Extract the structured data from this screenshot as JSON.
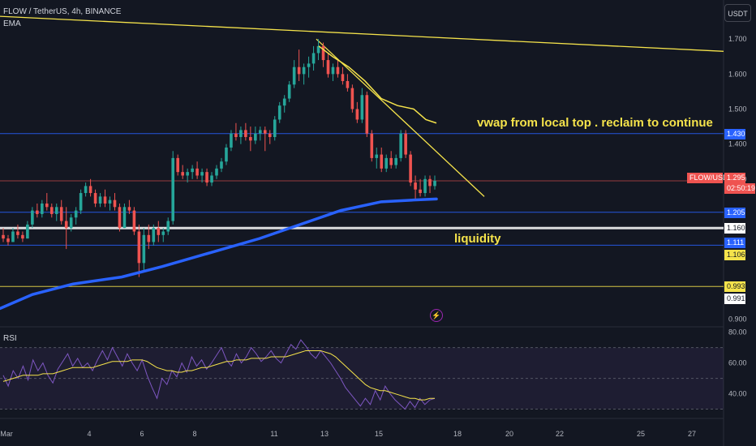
{
  "header": {
    "symbol_line": "FLOW / TetherUS, 4h, BINANCE",
    "indicator": "EMA",
    "rsi_label": "RSI",
    "currency_button": "USDT"
  },
  "annotations": {
    "vwap_text": "vwap from local top . reclaim to continue",
    "liquidity_text": "liquidity"
  },
  "price_tags": {
    "symbol": "FLOW/USDT",
    "last": "1.295",
    "countdown": "02:50:19",
    "l1430": "1.430",
    "l1205": "1.205",
    "l1160": "1.160",
    "l1111": "1.111",
    "l1106": "1.106",
    "l0993": "0.993",
    "l0991": "0.991"
  },
  "colors": {
    "background": "#131722",
    "up": "#26a69a",
    "down": "#ef5350",
    "yellow": "#f5e34b",
    "ema_blue": "#2962ff",
    "rsi": "#7e57c2",
    "rsi_ma": "#f5e34b"
  },
  "chart_data": [
    {
      "type": "candlestick",
      "price_axis_ticks": [
        "1.700",
        "1.600",
        "1.500",
        "1.400",
        "1.300",
        "0.900"
      ],
      "ylim": [
        0.88,
        1.77
      ],
      "x_ticks": [
        "Mar",
        "4",
        "6",
        "8",
        "11",
        "13",
        "15",
        "18",
        "20",
        "22",
        "25",
        "27"
      ],
      "candles": [
        [
          1.14,
          1.16,
          1.12,
          1.13
        ],
        [
          1.13,
          1.14,
          1.11,
          1.12
        ],
        [
          1.12,
          1.16,
          1.12,
          1.15
        ],
        [
          1.15,
          1.17,
          1.13,
          1.14
        ],
        [
          1.14,
          1.15,
          1.12,
          1.13
        ],
        [
          1.13,
          1.18,
          1.13,
          1.17
        ],
        [
          1.17,
          1.22,
          1.16,
          1.21
        ],
        [
          1.21,
          1.23,
          1.19,
          1.2
        ],
        [
          1.2,
          1.24,
          1.19,
          1.23
        ],
        [
          1.23,
          1.26,
          1.21,
          1.22
        ],
        [
          1.22,
          1.23,
          1.19,
          1.2
        ],
        [
          1.2,
          1.23,
          1.18,
          1.22
        ],
        [
          1.22,
          1.24,
          1.17,
          1.18
        ],
        [
          1.18,
          1.22,
          1.1,
          1.16
        ],
        [
          1.16,
          1.2,
          1.15,
          1.19
        ],
        [
          1.19,
          1.22,
          1.17,
          1.21
        ],
        [
          1.21,
          1.27,
          1.2,
          1.26
        ],
        [
          1.26,
          1.29,
          1.25,
          1.28
        ],
        [
          1.28,
          1.3,
          1.25,
          1.26
        ],
        [
          1.26,
          1.27,
          1.22,
          1.23
        ],
        [
          1.23,
          1.26,
          1.22,
          1.25
        ],
        [
          1.25,
          1.27,
          1.22,
          1.23
        ],
        [
          1.23,
          1.25,
          1.21,
          1.24
        ],
        [
          1.24,
          1.26,
          1.21,
          1.22
        ],
        [
          1.22,
          1.23,
          1.15,
          1.16
        ],
        [
          1.16,
          1.23,
          1.16,
          1.22
        ],
        [
          1.22,
          1.24,
          1.2,
          1.21
        ],
        [
          1.21,
          1.22,
          1.14,
          1.15
        ],
        [
          1.15,
          1.17,
          1.02,
          1.06
        ],
        [
          1.06,
          1.16,
          1.04,
          1.14
        ],
        [
          1.14,
          1.17,
          1.1,
          1.12
        ],
        [
          1.12,
          1.17,
          1.11,
          1.16
        ],
        [
          1.16,
          1.18,
          1.12,
          1.14
        ],
        [
          1.14,
          1.16,
          1.12,
          1.15
        ],
        [
          1.15,
          1.19,
          1.14,
          1.18
        ],
        [
          1.18,
          1.38,
          1.17,
          1.36
        ],
        [
          1.36,
          1.37,
          1.31,
          1.32
        ],
        [
          1.32,
          1.34,
          1.3,
          1.31
        ],
        [
          1.31,
          1.33,
          1.29,
          1.32
        ],
        [
          1.32,
          1.34,
          1.3,
          1.33
        ],
        [
          1.33,
          1.35,
          1.3,
          1.31
        ],
        [
          1.31,
          1.33,
          1.29,
          1.32
        ],
        [
          1.32,
          1.33,
          1.28,
          1.29
        ],
        [
          1.29,
          1.32,
          1.28,
          1.31
        ],
        [
          1.31,
          1.34,
          1.3,
          1.33
        ],
        [
          1.33,
          1.36,
          1.32,
          1.35
        ],
        [
          1.35,
          1.4,
          1.34,
          1.39
        ],
        [
          1.39,
          1.44,
          1.38,
          1.43
        ],
        [
          1.43,
          1.46,
          1.41,
          1.42
        ],
        [
          1.42,
          1.45,
          1.4,
          1.44
        ],
        [
          1.44,
          1.46,
          1.41,
          1.42
        ],
        [
          1.42,
          1.45,
          1.38,
          1.41
        ],
        [
          1.41,
          1.45,
          1.4,
          1.43
        ],
        [
          1.43,
          1.45,
          1.41,
          1.44
        ],
        [
          1.44,
          1.45,
          1.38,
          1.43
        ],
        [
          1.43,
          1.44,
          1.4,
          1.42
        ],
        [
          1.42,
          1.48,
          1.41,
          1.47
        ],
        [
          1.47,
          1.52,
          1.46,
          1.51
        ],
        [
          1.51,
          1.54,
          1.49,
          1.53
        ],
        [
          1.53,
          1.58,
          1.52,
          1.57
        ],
        [
          1.57,
          1.64,
          1.56,
          1.62
        ],
        [
          1.62,
          1.67,
          1.58,
          1.6
        ],
        [
          1.6,
          1.63,
          1.57,
          1.62
        ],
        [
          1.62,
          1.65,
          1.59,
          1.63
        ],
        [
          1.63,
          1.68,
          1.61,
          1.66
        ],
        [
          1.66,
          1.7,
          1.64,
          1.68
        ],
        [
          1.68,
          1.69,
          1.62,
          1.64
        ],
        [
          1.64,
          1.66,
          1.59,
          1.6
        ],
        [
          1.6,
          1.63,
          1.58,
          1.62
        ],
        [
          1.62,
          1.64,
          1.59,
          1.6
        ],
        [
          1.6,
          1.62,
          1.57,
          1.58
        ],
        [
          1.58,
          1.6,
          1.55,
          1.56
        ],
        [
          1.56,
          1.57,
          1.49,
          1.5
        ],
        [
          1.5,
          1.52,
          1.46,
          1.47
        ],
        [
          1.47,
          1.56,
          1.46,
          1.54
        ],
        [
          1.54,
          1.55,
          1.42,
          1.43
        ],
        [
          1.43,
          1.44,
          1.35,
          1.36
        ],
        [
          1.36,
          1.39,
          1.33,
          1.37
        ],
        [
          1.37,
          1.39,
          1.32,
          1.33
        ],
        [
          1.33,
          1.37,
          1.32,
          1.36
        ],
        [
          1.36,
          1.38,
          1.33,
          1.34
        ],
        [
          1.34,
          1.37,
          1.33,
          1.36
        ],
        [
          1.36,
          1.44,
          1.35,
          1.43
        ],
        [
          1.43,
          1.44,
          1.36,
          1.37
        ],
        [
          1.37,
          1.38,
          1.28,
          1.29
        ],
        [
          1.29,
          1.31,
          1.24,
          1.27
        ],
        [
          1.27,
          1.3,
          1.25,
          1.26
        ],
        [
          1.26,
          1.31,
          1.25,
          1.3
        ],
        [
          1.3,
          1.31,
          1.26,
          1.28
        ],
        [
          1.28,
          1.31,
          1.27,
          1.295
        ]
      ],
      "ema": [
        [
          0,
          0.93
        ],
        [
          40,
          0.97
        ],
        [
          90,
          1.0
        ],
        [
          150,
          1.02
        ],
        [
          200,
          1.05
        ],
        [
          260,
          1.09
        ],
        [
          320,
          1.13
        ],
        [
          370,
          1.17
        ],
        [
          420,
          1.21
        ],
        [
          470,
          1.235
        ],
        [
          510,
          1.24
        ],
        [
          538,
          1.243
        ]
      ],
      "vwap": [
        [
          393,
          1.68
        ],
        [
          410,
          1.65
        ],
        [
          430,
          1.62
        ],
        [
          450,
          1.58
        ],
        [
          470,
          1.53
        ],
        [
          490,
          1.51
        ],
        [
          510,
          1.5
        ],
        [
          525,
          1.47
        ],
        [
          538,
          1.46
        ]
      ],
      "trendlines": [
        [
          [
            0,
            1.765
          ],
          [
            892,
            1.665
          ]
        ],
        [
          [
            390,
            1.7
          ],
          [
            597,
            1.25
          ]
        ]
      ],
      "levels": [
        {
          "price": 1.43,
          "color": "#2962ff",
          "label": "1.430"
        },
        {
          "price": 1.295,
          "color": "#ef5350",
          "label": "1.295"
        },
        {
          "price": 1.205,
          "color": "#2962ff",
          "label": "1.205"
        },
        {
          "price": 1.16,
          "color": "#ffffff",
          "label": "1.160"
        },
        {
          "price": 1.111,
          "color": "#2962ff",
          "label": "1.111"
        },
        {
          "price": 1.106,
          "color": "#f5e34b",
          "label": "1.106"
        },
        {
          "price": 0.993,
          "color": "#f5e34b",
          "label": "0.993"
        },
        {
          "price": 0.991,
          "color": "#ffffff",
          "label": "0.991"
        }
      ]
    },
    {
      "type": "line",
      "title": "RSI",
      "ylim": [
        25,
        83
      ],
      "y_ticks": [
        "80.00",
        "60.00",
        "40.00"
      ],
      "band": [
        30,
        70
      ],
      "rsi": [
        52,
        45,
        55,
        50,
        58,
        49,
        62,
        55,
        60,
        52,
        47,
        56,
        61,
        66,
        58,
        63,
        57,
        60,
        55,
        62,
        68,
        62,
        70,
        64,
        58,
        66,
        60,
        55,
        62,
        52,
        44,
        37,
        50,
        46,
        55,
        51,
        60,
        54,
        64,
        58,
        62,
        56,
        60,
        65,
        70,
        62,
        58,
        66,
        60,
        64,
        70,
        66,
        61,
        64,
        68,
        63,
        60,
        66,
        72,
        69,
        75,
        71,
        66,
        63,
        68,
        64,
        60,
        55,
        50,
        44,
        40,
        36,
        32,
        37,
        33,
        42,
        36,
        45,
        40,
        36,
        33,
        30,
        35,
        31,
        37,
        33,
        36,
        37
      ],
      "rsi_ma": [
        48,
        49,
        50,
        51,
        52,
        52,
        52,
        52,
        53,
        53,
        53,
        54,
        55,
        56,
        57,
        57,
        57,
        57,
        57,
        58,
        59,
        60,
        61,
        61,
        61,
        61,
        62,
        62,
        62,
        61,
        59,
        57,
        56,
        55,
        55,
        54,
        54,
        55,
        55,
        56,
        57,
        57,
        58,
        59,
        60,
        61,
        61,
        62,
        62,
        62,
        63,
        63,
        63,
        63,
        64,
        64,
        64,
        64,
        65,
        66,
        67,
        68,
        68,
        68,
        68,
        67,
        66,
        64,
        61,
        58,
        55,
        52,
        49,
        46,
        44,
        43,
        42,
        42,
        41,
        40,
        39,
        38,
        37,
        37,
        36,
        36,
        37,
        37
      ]
    }
  ]
}
